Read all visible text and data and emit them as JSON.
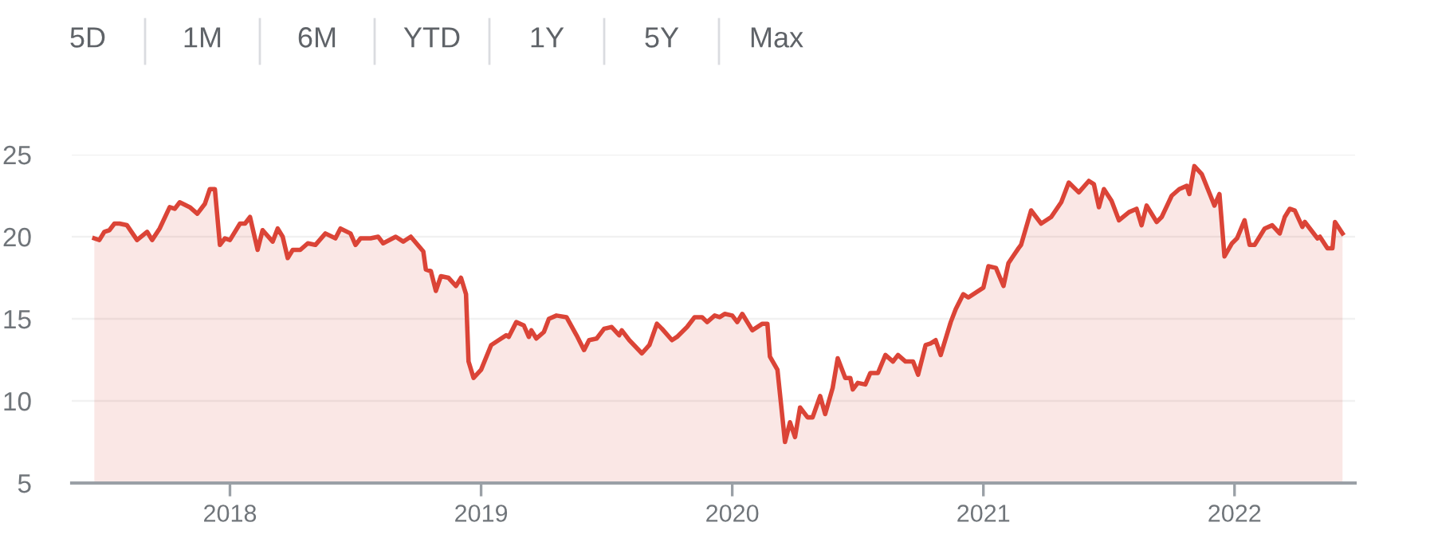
{
  "chart_data": {
    "type": "area",
    "annotations": [
      "5D",
      "1M",
      "6M",
      "YTD",
      "1Y",
      "5Y",
      "Max"
    ],
    "x": [
      2017.46,
      2017.48,
      2017.5,
      2017.52,
      2017.54,
      2017.56,
      2017.59,
      2017.63,
      2017.67,
      2017.69,
      2017.72,
      2017.76,
      2017.78,
      2017.8,
      2017.84,
      2017.87,
      2017.9,
      2017.92,
      2017.94,
      2017.96,
      2017.98,
      2018.0,
      2018.04,
      2018.06,
      2018.08,
      2018.11,
      2018.13,
      2018.17,
      2018.19,
      2018.21,
      2018.23,
      2018.25,
      2018.28,
      2018.31,
      2018.34,
      2018.38,
      2018.42,
      2018.44,
      2018.48,
      2018.5,
      2018.52,
      2018.56,
      2018.59,
      2018.61,
      2018.66,
      2018.69,
      2018.72,
      2018.77,
      2018.78,
      2018.8,
      2018.82,
      2018.84,
      2018.87,
      2018.9,
      2018.92,
      2018.94,
      2018.95,
      2018.97,
      2019.0,
      2019.04,
      2019.07,
      2019.1,
      2019.11,
      2019.14,
      2019.17,
      2019.19,
      2019.2,
      2019.22,
      2019.25,
      2019.27,
      2019.3,
      2019.34,
      2019.38,
      2019.41,
      2019.43,
      2019.46,
      2019.49,
      2019.52,
      2019.55,
      2019.56,
      2019.59,
      2019.64,
      2019.67,
      2019.7,
      2019.72,
      2019.76,
      2019.78,
      2019.82,
      2019.85,
      2019.88,
      2019.9,
      2019.93,
      2019.95,
      2019.97,
      2020.0,
      2020.02,
      2020.04,
      2020.08,
      2020.12,
      2020.14,
      2020.15,
      2020.18,
      2020.21,
      2020.23,
      2020.25,
      2020.27,
      2020.3,
      2020.32,
      2020.35,
      2020.37,
      2020.4,
      2020.42,
      2020.45,
      2020.47,
      2020.48,
      2020.5,
      2020.53,
      2020.55,
      2020.58,
      2020.61,
      2020.64,
      2020.66,
      2020.69,
      2020.72,
      2020.74,
      2020.77,
      2020.79,
      2020.81,
      2020.83,
      2020.87,
      2020.89,
      2020.92,
      2020.94,
      2021.0,
      2021.02,
      2021.05,
      2021.08,
      2021.1,
      2021.14,
      2021.15,
      2021.19,
      2021.23,
      2021.27,
      2021.31,
      2021.34,
      2021.38,
      2021.42,
      2021.44,
      2021.46,
      2021.48,
      2021.51,
      2021.54,
      2021.58,
      2021.61,
      2021.63,
      2021.65,
      2021.69,
      2021.71,
      2021.75,
      2021.78,
      2021.81,
      2021.82,
      2021.84,
      2021.87,
      2021.92,
      2021.94,
      2021.96,
      2021.99,
      2022.01,
      2022.04,
      2022.06,
      2022.08,
      2022.12,
      2022.15,
      2022.18,
      2022.2,
      2022.22,
      2022.24,
      2022.27,
      2022.28,
      2022.33,
      2022.34,
      2022.37,
      2022.39,
      2022.4,
      2022.43
    ],
    "series": [
      {
        "color": "#db4437",
        "values": [
          19.9,
          19.8,
          20.3,
          20.4,
          20.8,
          20.8,
          20.7,
          19.8,
          20.3,
          19.8,
          20.5,
          21.8,
          21.7,
          22.1,
          21.8,
          21.4,
          22.0,
          22.9,
          22.9,
          19.5,
          19.9,
          19.8,
          20.8,
          20.8,
          21.2,
          19.2,
          20.4,
          19.7,
          20.5,
          20.0,
          18.7,
          19.2,
          19.2,
          19.6,
          19.5,
          20.2,
          19.9,
          20.5,
          20.2,
          19.5,
          19.9,
          19.9,
          20.0,
          19.6,
          20.0,
          19.7,
          20.0,
          19.1,
          18.0,
          17.9,
          16.7,
          17.6,
          17.5,
          17.0,
          17.5,
          16.5,
          12.4,
          11.4,
          11.9,
          13.4,
          13.7,
          14.0,
          13.9,
          14.8,
          14.6,
          13.9,
          14.3,
          13.8,
          14.2,
          15.0,
          15.2,
          15.1,
          14.0,
          13.1,
          13.7,
          13.8,
          14.4,
          14.5,
          14.0,
          14.3,
          13.7,
          12.9,
          13.4,
          14.7,
          14.4,
          13.7,
          13.9,
          14.5,
          15.1,
          15.1,
          14.8,
          15.2,
          15.1,
          15.3,
          15.2,
          14.8,
          15.3,
          14.3,
          14.7,
          14.7,
          12.7,
          11.9,
          7.5,
          8.7,
          7.8,
          9.6,
          9.0,
          9.0,
          10.3,
          9.2,
          10.8,
          12.6,
          11.4,
          11.4,
          10.7,
          11.1,
          11.0,
          11.7,
          11.7,
          12.8,
          12.4,
          12.8,
          12.4,
          12.4,
          11.6,
          13.4,
          13.5,
          13.7,
          12.8,
          14.8,
          15.6,
          16.5,
          16.3,
          16.9,
          18.2,
          18.1,
          17.0,
          18.4,
          19.3,
          19.5,
          21.6,
          20.8,
          21.2,
          22.1,
          23.3,
          22.7,
          23.4,
          23.2,
          21.8,
          22.9,
          22.2,
          21.0,
          21.5,
          21.7,
          20.7,
          21.9,
          20.9,
          21.2,
          22.5,
          22.9,
          23.1,
          22.6,
          24.3,
          23.8,
          21.9,
          22.6,
          18.8,
          19.6,
          19.9,
          21.0,
          19.5,
          19.5,
          20.5,
          20.7,
          20.2,
          21.2,
          21.7,
          21.6,
          20.6,
          20.9,
          19.9,
          20.0,
          19.3,
          19.3,
          20.9,
          20.2
        ]
      }
    ],
    "xlim": [
      2017.37,
      2022.48
    ],
    "xticks": [
      2018,
      2019,
      2020,
      2021,
      2022
    ],
    "ylim": [
      5,
      25
    ],
    "yticks": [
      5,
      10,
      15,
      20,
      25
    ],
    "grid": "y",
    "legend": false,
    "marker": "none",
    "line_style": "solid"
  }
}
